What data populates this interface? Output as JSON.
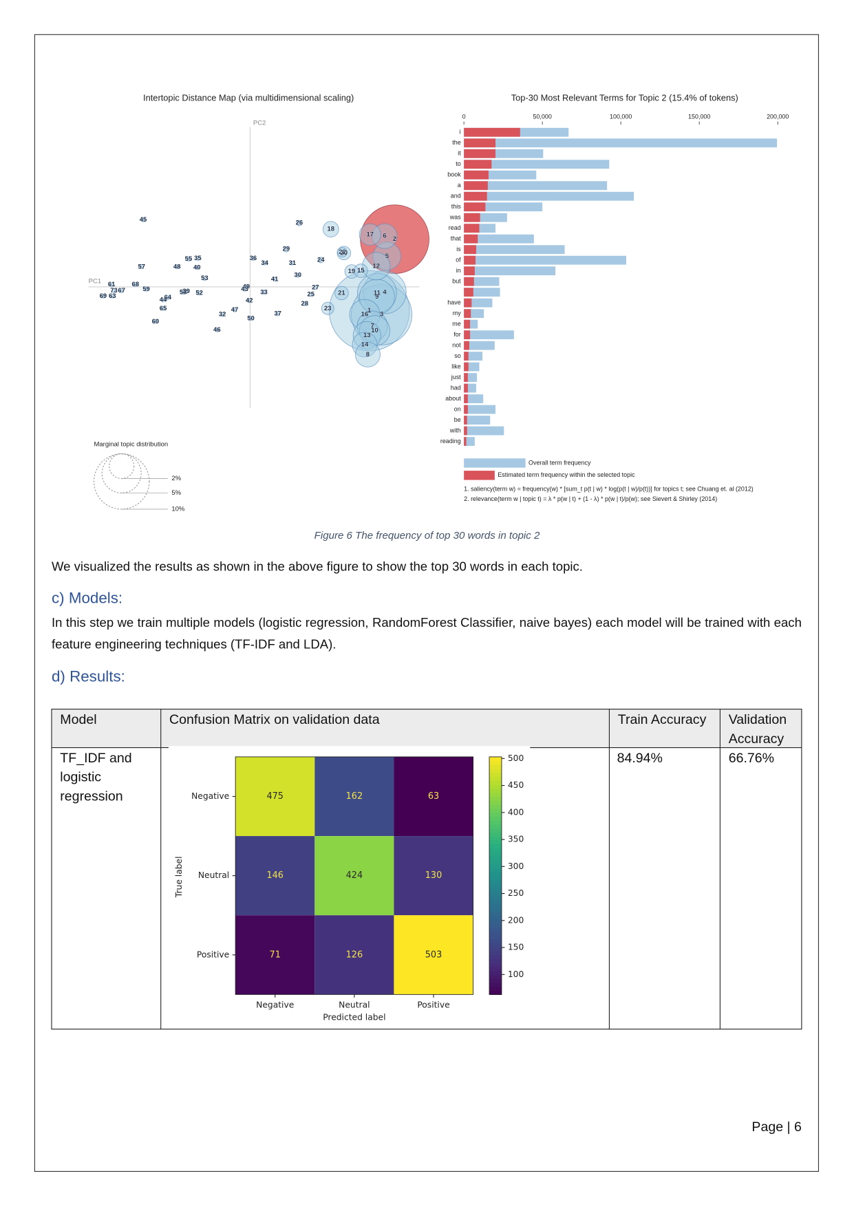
{
  "document": {
    "caption": "Figure 6 The frequency of top 30 words in topic 2",
    "paragraph_1": "We visualized the results as shown in the above figure to show the top 30 words in each topic.",
    "heading_c": "c)  Models:",
    "paragraph_2": "In this step we train multiple models (logistic regression, RandomForest Classifier, naive bayes) each model will be trained with each feature engineering techniques (TF-IDF and LDA).",
    "heading_d": "d)  Results:",
    "table": {
      "header": [
        "Model",
        "Confusion Matrix on validation data",
        "Train Accuracy",
        "Validation Accuracy"
      ],
      "rows": [
        {
          "model": "TF_IDF and logistic regression",
          "train_accuracy": "84.94%",
          "validation_accuracy": "66.76%"
        }
      ]
    },
    "footer": "Page | 6"
  },
  "chart_data": [
    {
      "type": "bubble",
      "title": "Intertopic Distance Map (via multidimensional scaling)",
      "xlabel": "PC1",
      "ylabel": "PC2",
      "color": "#9ecae1",
      "selected": "2",
      "selected_color": "#e05a5e",
      "labels": [
        "45",
        "26",
        "18",
        "17",
        "6",
        "2",
        "29",
        "22",
        "20",
        "5",
        "55",
        "35",
        "36",
        "24",
        "34",
        "31",
        "57",
        "48",
        "40",
        "12",
        "19",
        "15",
        "30",
        "41",
        "53",
        "61",
        "73",
        "67",
        "69",
        "63",
        "68",
        "59",
        "64",
        "44",
        "58",
        "39",
        "52",
        "65",
        "60",
        "49",
        "43",
        "33",
        "27",
        "25",
        "21",
        "11",
        "4",
        "9",
        "42",
        "28",
        "23",
        "47",
        "1",
        "16",
        "3",
        "32",
        "37",
        "50",
        "7",
        "10",
        "13",
        "14",
        "46",
        "8"
      ],
      "x": [
        -1.39,
        0.64,
        1.05,
        1.56,
        1.75,
        1.88,
        0.47,
        1.2,
        1.22,
        1.78,
        -0.8,
        -0.68,
        0.04,
        0.92,
        0.19,
        0.55,
        -1.41,
        -0.95,
        -0.69,
        1.64,
        1.32,
        1.44,
        0.62,
        0.32,
        -0.59,
        -1.8,
        -1.77,
        -1.67,
        -1.91,
        -1.79,
        -1.49,
        -1.35,
        -1.07,
        -1.13,
        -0.87,
        -0.83,
        -0.66,
        -1.13,
        -1.23,
        -0.05,
        -0.07,
        0.18,
        0.85,
        0.79,
        1.19,
        1.65,
        1.75,
        1.65,
        -0.01,
        0.71,
        1.01,
        -0.2,
        1.55,
        1.49,
        1.71,
        -0.36,
        0.36,
        0.01,
        1.59,
        1.62,
        1.52,
        1.49,
        -0.43,
        1.53
      ],
      "y": [
        0.87,
        0.83,
        0.75,
        0.68,
        0.66,
        0.62,
        0.49,
        0.45,
        0.44,
        0.4,
        0.36,
        0.37,
        0.37,
        0.35,
        0.31,
        0.31,
        0.26,
        0.26,
        0.25,
        0.27,
        0.2,
        0.21,
        0.15,
        0.1,
        0.11,
        0.03,
        -0.05,
        -0.05,
        -0.12,
        -0.12,
        0.03,
        -0.03,
        -0.14,
        -0.17,
        -0.07,
        -0.06,
        -0.08,
        -0.28,
        -0.45,
        0.0,
        -0.03,
        -0.07,
        -0.01,
        -0.1,
        -0.08,
        -0.08,
        -0.07,
        -0.13,
        -0.18,
        -0.22,
        -0.28,
        -0.3,
        -0.31,
        -0.36,
        -0.36,
        -0.36,
        -0.35,
        -0.41,
        -0.51,
        -0.57,
        -0.63,
        -0.75,
        -0.56,
        -0.88
      ],
      "sizes": [
        0.05,
        0.1,
        0.8,
        1.5,
        2,
        15.4,
        0.1,
        0.3,
        0.6,
        2.5,
        0.05,
        0.05,
        0.05,
        0.1,
        0.05,
        0.05,
        0.05,
        0.05,
        0.05,
        2.5,
        0.6,
        0.6,
        0.05,
        0.05,
        0.05,
        0.05,
        0.05,
        0.05,
        0.05,
        0.05,
        0.05,
        0.05,
        0.05,
        0.05,
        0.05,
        0.05,
        0.05,
        0.05,
        0.05,
        0.05,
        0.05,
        0.05,
        0.05,
        0.05,
        0.6,
        5,
        6,
        4,
        0.05,
        0.05,
        0.5,
        0.05,
        21,
        3,
        12,
        0.05,
        0.05,
        0.05,
        3,
        3,
        2.5,
        2,
        0.05,
        2
      ],
      "size_legend": {
        "title": "Marginal topic distribution",
        "values": [
          2,
          5,
          10
        ],
        "value_labels": [
          "2%",
          "5%",
          "10%"
        ]
      }
    },
    {
      "type": "barh",
      "title": "Top-30 Most Relevant Terms for Topic 2 (15.4% of tokens)",
      "categories": [
        "i",
        "the",
        "it",
        "to",
        "book",
        "a",
        "and",
        "this",
        "was",
        "read",
        "that",
        "is",
        "of",
        "in",
        "but",
        null,
        "have",
        "my",
        "me",
        "for",
        "not",
        "so",
        "like",
        "just",
        "had",
        "about",
        "on",
        "be",
        "with",
        "reading"
      ],
      "series": [
        {
          "name": "Overall term frequency",
          "color": "#a6c8e3",
          "values": [
            66700,
            199500,
            50500,
            92600,
            46100,
            91200,
            108300,
            50000,
            27500,
            20100,
            44600,
            64200,
            103400,
            58300,
            22500,
            23000,
            18100,
            12700,
            8800,
            31900,
            19600,
            11800,
            9800,
            8300,
            7800,
            12300,
            20100,
            16700,
            25500,
            6900
          ]
        },
        {
          "name": "Estimated term frequency within the selected topic",
          "color": "#d9545a",
          "values": [
            35800,
            20100,
            20100,
            17600,
            15700,
            15200,
            14700,
            13700,
            10300,
            9800,
            8800,
            7800,
            7400,
            6900,
            6400,
            6000,
            4900,
            4400,
            3900,
            3900,
            3400,
            2900,
            2900,
            2500,
            2500,
            2500,
            2500,
            2000,
            2000,
            1500
          ]
        }
      ],
      "xlim": [
        0,
        200000
      ],
      "xticks": [
        0,
        {
          "value": 50000,
          "label": "50,000"
        },
        {
          "value": 100000,
          "label": "100,000"
        },
        {
          "value": 150000,
          "label": "150,000"
        },
        {
          "value": 200000,
          "label": "200,000"
        }
      ],
      "notes": [
        "1. saliency(term w) = frequency(w) * [sum_t p(t | w) * log(p(t | w)/p(t))] for topics t; see Chuang et. al (2012)",
        "2. relevance(term w | topic t) = λ * p(w | t) + (1 - λ) * p(w | t)/p(w); see Sievert & Shirley (2014)"
      ]
    },
    {
      "type": "heatmap",
      "x_categories": [
        "Negative",
        "Neutral",
        "Positive"
      ],
      "y_categories": [
        "Negative",
        "Neutral",
        "Positive"
      ],
      "values": [
        [
          475,
          162,
          63
        ],
        [
          146,
          424,
          130
        ],
        [
          71,
          126,
          503
        ]
      ],
      "clim": [
        63,
        503
      ],
      "colormap": "viridis",
      "colorbar_ticks": [
        100,
        150,
        200,
        250,
        300,
        350,
        400,
        450,
        500
      ],
      "xlabel": "Predicted label",
      "ylabel": "True label"
    }
  ]
}
